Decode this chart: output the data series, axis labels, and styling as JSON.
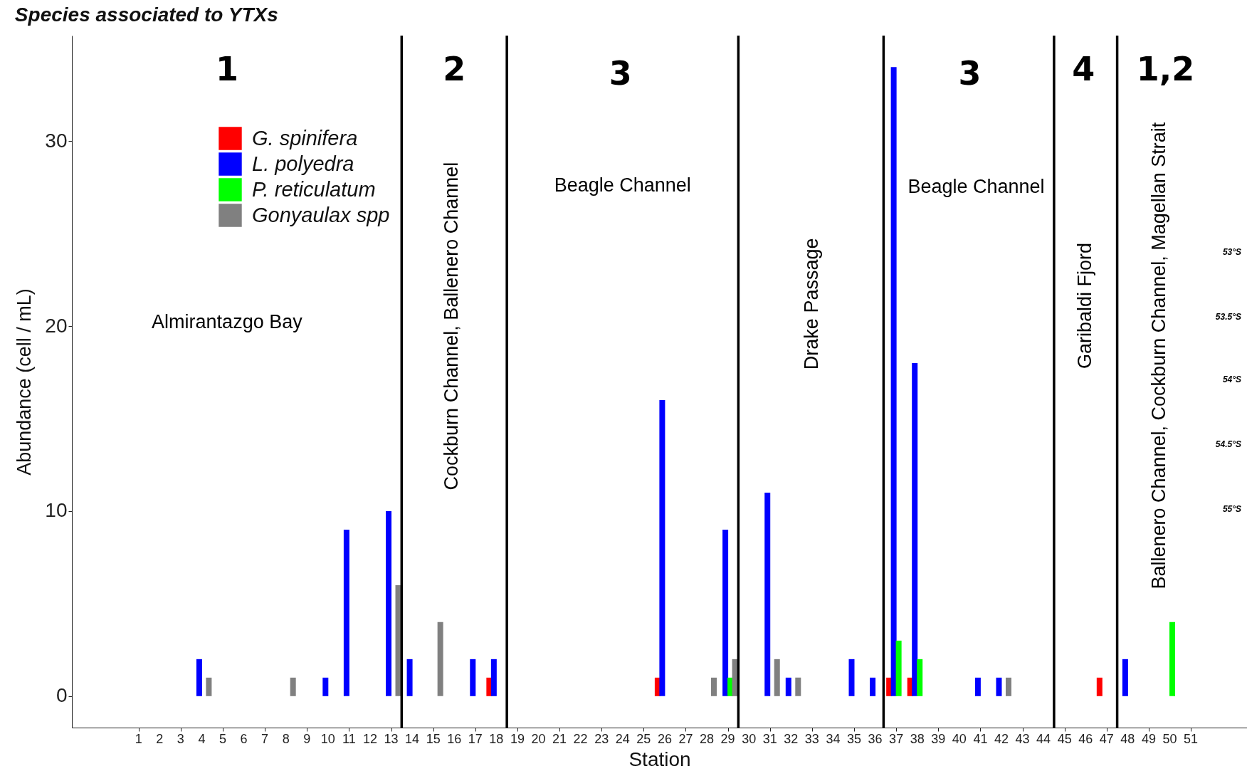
{
  "chart_data": {
    "type": "bar",
    "title": "Species associated to YTXs",
    "xlabel": "Station",
    "ylabel": "Abundance  (cell / mL)",
    "series": [
      {
        "name": "G. spinifera",
        "color": "#ff0000",
        "x": [
          18,
          26,
          37,
          38,
          47
        ],
        "values": [
          1,
          1,
          1,
          1,
          1
        ]
      },
      {
        "name": "L. polyedra",
        "color": "#0000ff",
        "x": [
          4,
          10,
          11,
          13,
          14,
          17,
          18,
          26,
          29,
          31,
          32,
          35,
          36,
          37,
          38,
          41,
          42,
          48
        ],
        "values": [
          2,
          1,
          9,
          10,
          2,
          2,
          2,
          16,
          9,
          11,
          1,
          2,
          1,
          34,
          18,
          1,
          1,
          2
        ]
      },
      {
        "name": "P. reticulatum",
        "color": "#00ff00",
        "x": [
          29,
          37,
          38,
          50
        ],
        "values": [
          1,
          3,
          2,
          4
        ]
      },
      {
        "name": "Gonyaulax spp",
        "color": "#808080",
        "x": [
          4,
          8,
          13,
          15,
          28,
          29,
          31,
          32,
          42
        ],
        "values": [
          1,
          1,
          6,
          4,
          1,
          2,
          2,
          1,
          1
        ]
      }
    ],
    "xlim": [
      -2,
      53.5
    ],
    "xticks": [
      1,
      2,
      3,
      4,
      5,
      6,
      7,
      8,
      9,
      10,
      11,
      12,
      13,
      14,
      15,
      16,
      17,
      18,
      19,
      20,
      21,
      22,
      23,
      24,
      25,
      26,
      27,
      28,
      29,
      30,
      31,
      32,
      33,
      34,
      35,
      36,
      37,
      38,
      39,
      40,
      41,
      42,
      43,
      44,
      45,
      46,
      47,
      48,
      49,
      50,
      51
    ],
    "ylim": [
      -1.7,
      35.7
    ],
    "yticks": [
      0,
      10,
      20,
      30
    ],
    "ref_lines": [
      {
        "axis": "x",
        "value": 13.5,
        "color": "#000000"
      },
      {
        "axis": "x",
        "value": 18.5,
        "color": "#000000"
      },
      {
        "axis": "x",
        "value": 29.5,
        "color": "#000000"
      },
      {
        "axis": "x",
        "value": 36.4,
        "color": "#000000"
      },
      {
        "axis": "x",
        "value": 44.5,
        "color": "#000000"
      },
      {
        "axis": "x",
        "value": 47.5,
        "color": "#000000"
      }
    ],
    "annotations": [
      "1",
      "2",
      "3",
      "3",
      "4",
      "1,2",
      "Almirantazgo Bay",
      "Cockburn Channel, Ballenero Channel",
      "Beagle Channel",
      "Drake Passage",
      "Beagle Channel",
      "Garibaldi Fjord",
      "Ballenero Channel, Cockburn Channel, Magellan Strait",
      "53°S",
      "53.5°S",
      "54°S",
      "54.5°S",
      "55°S"
    ],
    "legend": "top left"
  }
}
